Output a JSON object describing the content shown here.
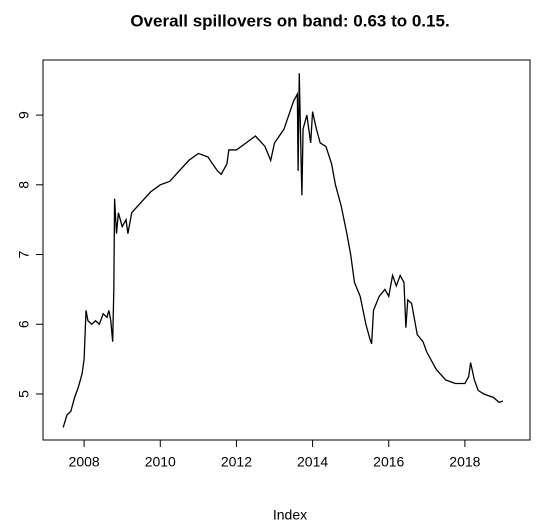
{
  "chart_data": {
    "type": "line",
    "title": "Overall spillovers on band: 0.63 to 0.15.",
    "x_label": "Index",
    "x": [
      2007.45,
      2007.55,
      2007.65,
      2007.75,
      2007.85,
      2007.95,
      2008.0,
      2008.05,
      2008.1,
      2008.2,
      2008.3,
      2008.4,
      2008.5,
      2008.6,
      2008.65,
      2008.7,
      2008.75,
      2008.78,
      2008.8,
      2008.85,
      2008.9,
      2009.0,
      2009.1,
      2009.15,
      2009.25,
      2009.5,
      2009.75,
      2010.0,
      2010.25,
      2010.5,
      2010.75,
      2011.0,
      2011.25,
      2011.5,
      2011.6,
      2011.75,
      2011.8,
      2012.0,
      2012.25,
      2012.5,
      2012.75,
      2012.9,
      2013.0,
      2013.25,
      2013.5,
      2013.6,
      2013.62,
      2013.65,
      2013.7,
      2013.72,
      2013.75,
      2013.85,
      2013.95,
      2014.0,
      2014.1,
      2014.2,
      2014.35,
      2014.5,
      2014.6,
      2014.75,
      2014.9,
      2015.0,
      2015.1,
      2015.25,
      2015.4,
      2015.5,
      2015.55,
      2015.6,
      2015.75,
      2015.9,
      2016.0,
      2016.1,
      2016.2,
      2016.3,
      2016.4,
      2016.45,
      2016.5,
      2016.6,
      2016.75,
      2016.9,
      2017.0,
      2017.25,
      2017.5,
      2017.75,
      2018.0,
      2018.1,
      2018.15,
      2018.25,
      2018.35,
      2018.5,
      2018.75,
      2018.9,
      2019.0
    ],
    "series": [
      {
        "color": "#000000",
        "values": [
          4.52,
          4.7,
          4.75,
          4.95,
          5.1,
          5.3,
          5.5,
          6.2,
          6.05,
          6.0,
          6.05,
          6.0,
          6.15,
          6.1,
          6.2,
          6.05,
          5.75,
          6.5,
          7.8,
          7.3,
          7.6,
          7.4,
          7.5,
          7.3,
          7.6,
          7.75,
          7.9,
          8.0,
          8.05,
          8.2,
          8.35,
          8.45,
          8.4,
          8.2,
          8.15,
          8.3,
          8.5,
          8.5,
          8.6,
          8.7,
          8.55,
          8.35,
          8.6,
          8.8,
          9.2,
          9.3,
          8.2,
          9.6,
          8.3,
          7.85,
          8.8,
          9.0,
          8.6,
          9.05,
          8.8,
          8.6,
          8.55,
          8.3,
          8.0,
          7.7,
          7.3,
          7.0,
          6.6,
          6.4,
          6.0,
          5.8,
          5.72,
          6.2,
          6.4,
          6.5,
          6.4,
          6.7,
          6.55,
          6.7,
          6.6,
          5.95,
          6.35,
          6.3,
          5.85,
          5.75,
          5.6,
          5.35,
          5.2,
          5.15,
          5.15,
          5.25,
          5.45,
          5.2,
          5.05,
          5.0,
          4.95,
          4.88,
          4.9
        ]
      }
    ],
    "xlim": [
      2006.92,
      2019.71
    ],
    "ylim": [
      4.34,
      9.79
    ],
    "xticks": [
      2008,
      2010,
      2012,
      2014,
      2016,
      2018
    ],
    "yticks": [
      5,
      6,
      7,
      8,
      9
    ]
  }
}
